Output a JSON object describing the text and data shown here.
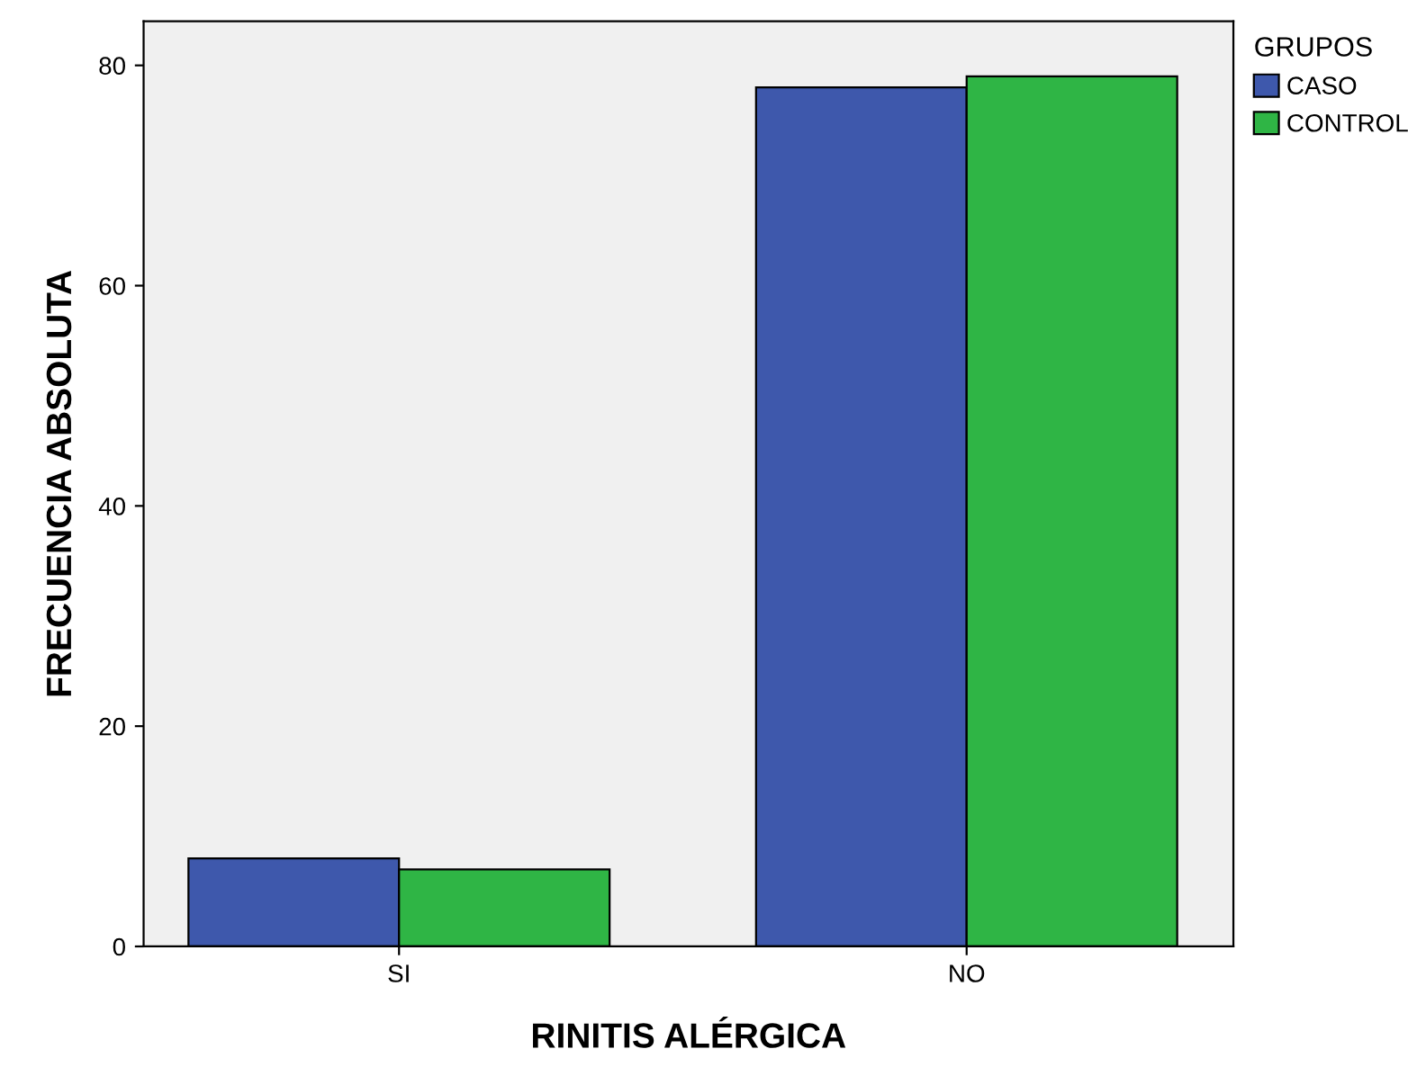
{
  "chart_data": {
    "type": "bar",
    "xlabel": "RINITIS ALÉRGICA",
    "ylabel": "FRECUENCIA ABSOLUTA",
    "legend_title": "GRUPOS",
    "categories": [
      "SI",
      "NO"
    ],
    "series": [
      {
        "name": "CASO",
        "color": "#3e58ac",
        "values": [
          8,
          78
        ]
      },
      {
        "name": "CONTROL",
        "color": "#2fb545",
        "values": [
          7,
          79
        ]
      }
    ],
    "ylim": [
      0,
      84
    ],
    "yticks": [
      0,
      20,
      40,
      60,
      80
    ],
    "grid": false,
    "legend": "top right"
  }
}
